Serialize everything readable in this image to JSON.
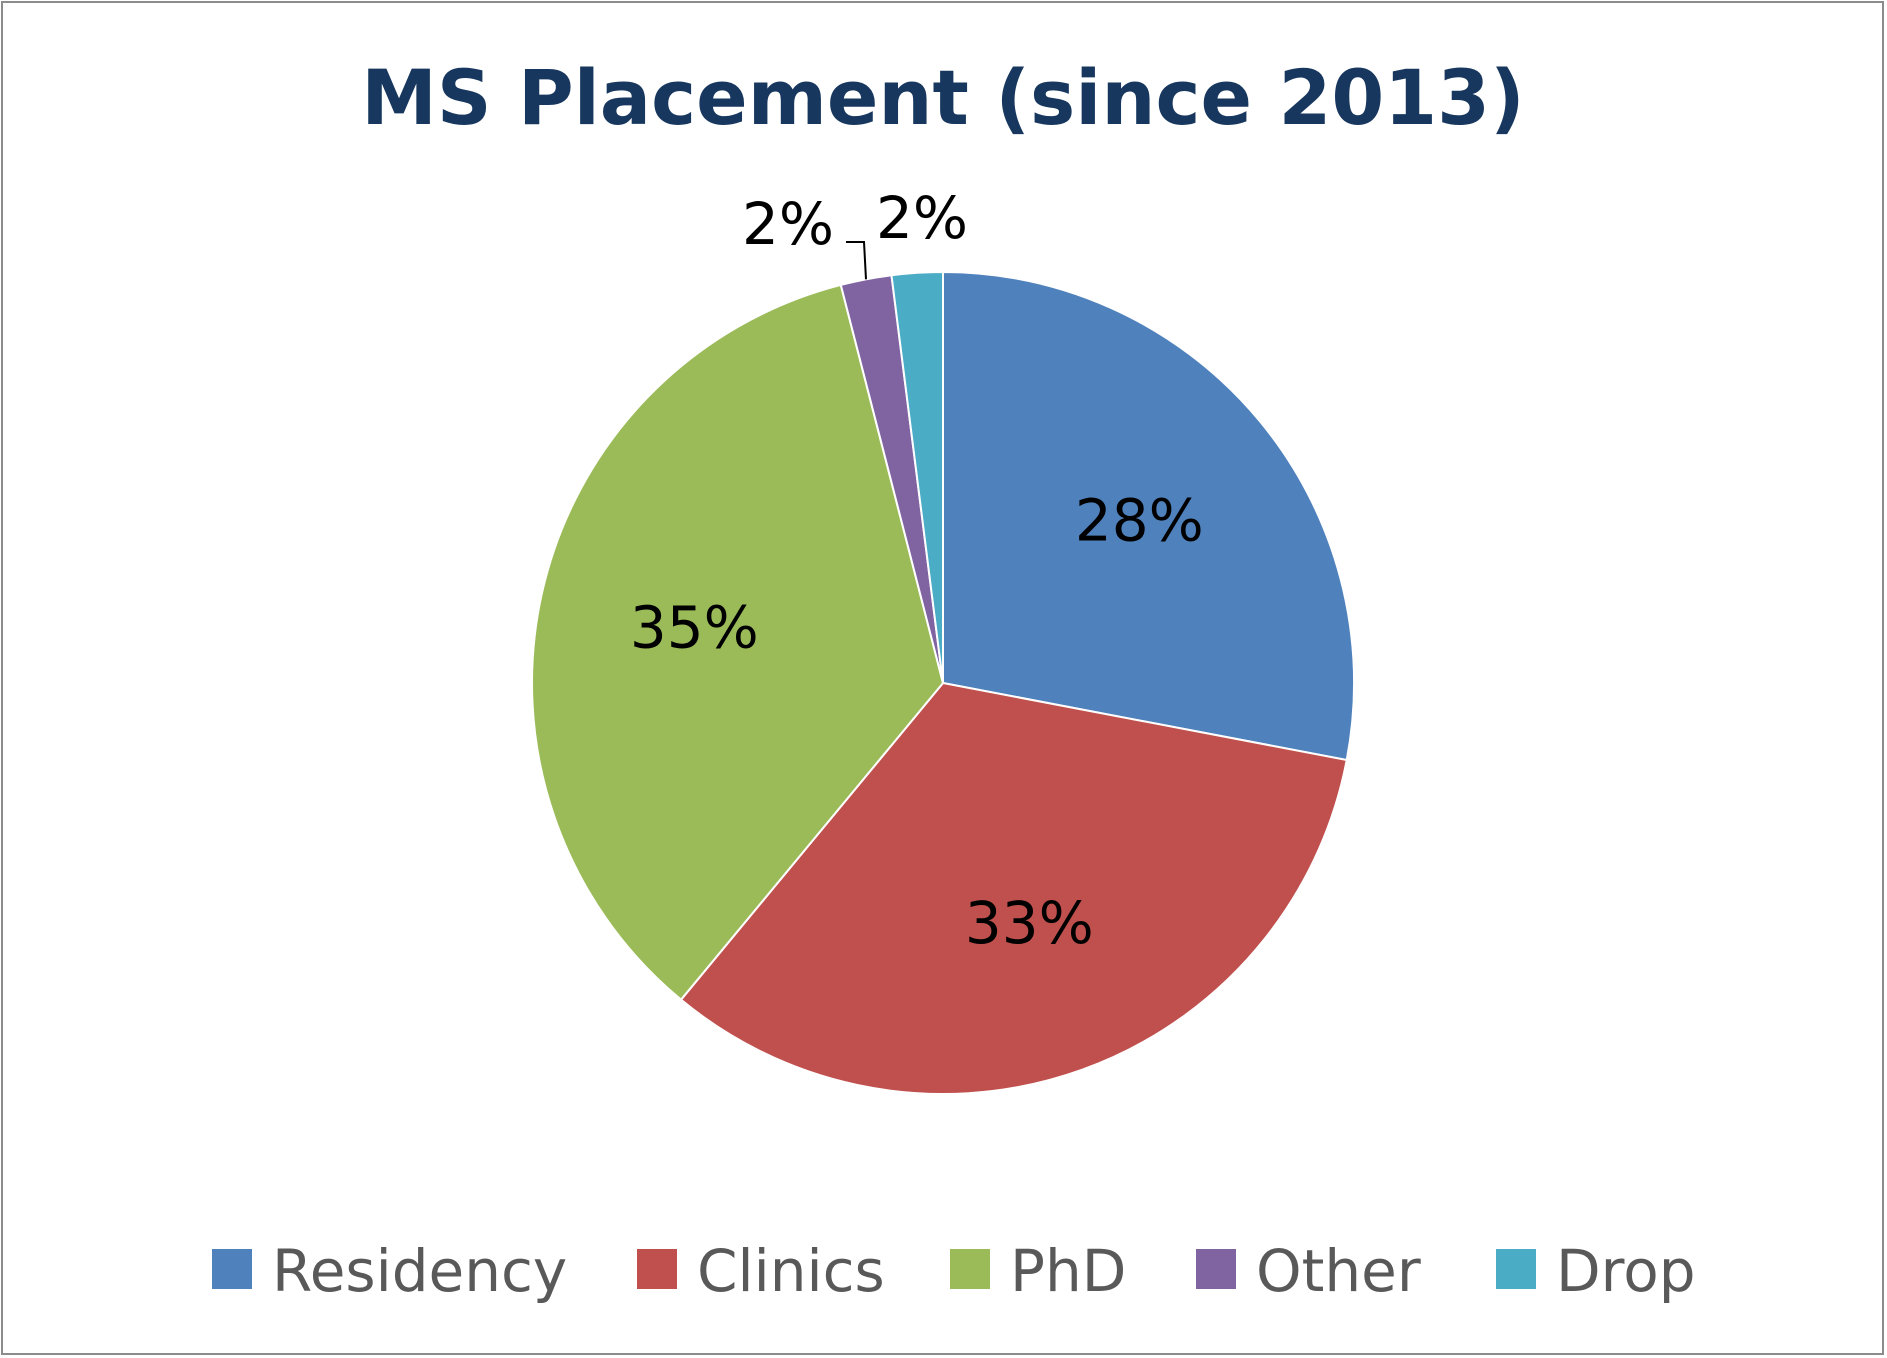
{
  "chart_data": {
    "type": "pie",
    "title": "MS Placement (since 2013)",
    "start_angle_deg": 0,
    "direction": "clockwise",
    "categories": [
      "Residency",
      "Clinics",
      "PhD",
      "Other",
      "Drop"
    ],
    "values": [
      28,
      33,
      35,
      2,
      2
    ],
    "value_labels": [
      "28%",
      "33%",
      "35%",
      "2%",
      "2%"
    ],
    "colors": [
      "#4f81bd",
      "#c0504d",
      "#9bbb59",
      "#8064a2",
      "#4bacc6"
    ],
    "legend_position": "bottom"
  }
}
